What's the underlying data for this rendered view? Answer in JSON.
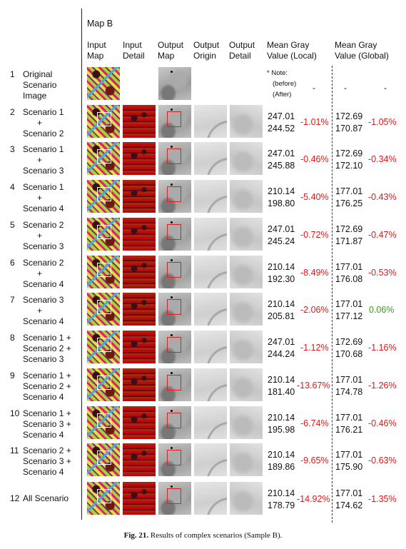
{
  "figure": {
    "map_title": "Map B",
    "caption_label": "Fig. 21.",
    "caption_text": "Results of complex scenarios (Sample B)."
  },
  "headers": {
    "input_map": [
      "Input",
      "Map"
    ],
    "input_detail": [
      "Input",
      "Detail"
    ],
    "output_map": [
      "Output",
      "Map"
    ],
    "output_origin": [
      "Output",
      "Origin"
    ],
    "output_detail": [
      "Output",
      "Detail"
    ],
    "mean_local": [
      "Mean Gray",
      "Value (Local)"
    ],
    "mean_global": [
      "Mean Gray",
      "Value (Global)"
    ]
  },
  "note": [
    "* Note:",
    "(before)",
    "(After)"
  ],
  "rows": [
    {
      "num": "1",
      "label": [
        "Original",
        "Scenario",
        "Image"
      ],
      "local_before": "",
      "local_after": "",
      "local_pct": "-",
      "global_before": "-",
      "global_after": "",
      "global_pct": "-"
    },
    {
      "num": "2",
      "label": [
        "Scenario 1",
        "+",
        "Scenario 2"
      ],
      "local_before": "247.01",
      "local_after": "244.52",
      "local_pct": "-1.01%",
      "global_before": "172.69",
      "global_after": "170.87",
      "global_pct": "-1.05%"
    },
    {
      "num": "3",
      "label": [
        "Scenario 1",
        "+",
        "Scenario 3"
      ],
      "local_before": "247.01",
      "local_after": "245.88",
      "local_pct": "-0.46%",
      "global_before": "172.69",
      "global_after": "172.10",
      "global_pct": "-0.34%"
    },
    {
      "num": "4",
      "label": [
        "Scenario 1",
        "+",
        "Scenario 4"
      ],
      "local_before": "210.14",
      "local_after": "198.80",
      "local_pct": "-5.40%",
      "global_before": "177.01",
      "global_after": "176.25",
      "global_pct": "-0.43%"
    },
    {
      "num": "5",
      "label": [
        "Scenario 2",
        "+",
        "Scenario 3"
      ],
      "local_before": "247.01",
      "local_after": "245.24",
      "local_pct": "-0.72%",
      "global_before": "172.69",
      "global_after": "171.87",
      "global_pct": "-0.47%"
    },
    {
      "num": "6",
      "label": [
        "Scenario 2",
        "+",
        "Scenario 4"
      ],
      "local_before": "210.14",
      "local_after": "192.30",
      "local_pct": "-8.49%",
      "global_before": "177.01",
      "global_after": "176.08",
      "global_pct": "-0.53%"
    },
    {
      "num": "7",
      "label": [
        "Scenario 3",
        "+",
        "Scenario 4"
      ],
      "local_before": "210.14",
      "local_after": "205.81",
      "local_pct": "-2.06%",
      "global_before": "177.01",
      "global_after": "177.12",
      "global_pct": "0.06%"
    },
    {
      "num": "8",
      "label": [
        "Scenario 1 +",
        "Scenario 2 +",
        "Scenario 3"
      ],
      "local_before": "247.01",
      "local_after": "244.24",
      "local_pct": "-1.12%",
      "global_before": "172.69",
      "global_after": "170.68",
      "global_pct": "-1.16%"
    },
    {
      "num": "9",
      "label": [
        "Scenario 1 +",
        "Scenario 2 +",
        "Scenario 4"
      ],
      "local_before": "210.14",
      "local_after": "181.40",
      "local_pct": "-13.67%",
      "global_before": "177.01",
      "global_after": "174.78",
      "global_pct": "-1.26%"
    },
    {
      "num": "10",
      "label": [
        "Scenario 1 +",
        "Scenario 3 +",
        "Scenario 4"
      ],
      "local_before": "210.14",
      "local_after": "195.98",
      "local_pct": "-6.74%",
      "global_before": "177.01",
      "global_after": "176.21",
      "global_pct": "-0.46%"
    },
    {
      "num": "11",
      "label": [
        "Scenario 2 +",
        "Scenario 3 +",
        "Scenario 4"
      ],
      "local_before": "210.14",
      "local_after": "189.86",
      "local_pct": "-9.65%",
      "global_before": "177.01",
      "global_after": "175.90",
      "global_pct": "-0.63%"
    },
    {
      "num": "12",
      "label": [
        "All Scenario"
      ],
      "local_before": "210.14",
      "local_after": "178.79",
      "local_pct": "-14.92%",
      "global_before": "177.01",
      "global_after": "174.62",
      "global_pct": "-1.35%"
    }
  ],
  "colors": {
    "negative": "#e01818",
    "positive": "#3a9a1a"
  }
}
